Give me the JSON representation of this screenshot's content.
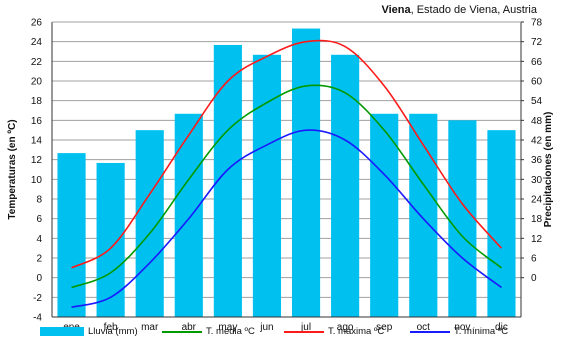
{
  "title": {
    "bold": "Viena",
    "rest": ", Estado de Viena, Austria"
  },
  "chart_data": {
    "type": "bar+line",
    "categories": [
      "ene",
      "feb",
      "mar",
      "abr",
      "may",
      "jun",
      "jul",
      "ago",
      "sep",
      "oct",
      "nov",
      "dic"
    ],
    "left_axis": {
      "label": "Temperaturas (en ºC)",
      "range": [
        -4,
        26
      ],
      "ticks": [
        -4,
        -2,
        0,
        2,
        4,
        6,
        8,
        10,
        12,
        14,
        16,
        18,
        20,
        22,
        24,
        26
      ]
    },
    "right_axis": {
      "label": "Precipitaciones (en mm)",
      "range": [
        -12,
        78
      ],
      "ticks": [
        0,
        6,
        12,
        18,
        24,
        30,
        36,
        42,
        48,
        54,
        60,
        66,
        72,
        78
      ]
    },
    "bars": {
      "name": "Lluvia (mm)",
      "axis": "right",
      "color": "#00c0f0",
      "values": [
        38,
        35,
        45,
        50,
        71,
        68,
        76,
        68,
        50,
        50,
        48,
        45
      ]
    },
    "series": [
      {
        "name": "T. media ºC",
        "color": "#009a00",
        "values": [
          -1.0,
          0.5,
          4.5,
          10.0,
          15.0,
          17.8,
          19.5,
          18.8,
          15.0,
          9.5,
          4.2,
          1.0
        ]
      },
      {
        "name": "T. máxima ºC",
        "color": "#ff1a1a",
        "values": [
          1.0,
          3.0,
          8.5,
          14.5,
          20.0,
          22.5,
          24.0,
          23.5,
          19.5,
          13.5,
          7.5,
          3.0
        ]
      },
      {
        "name": "T. mínima ºC",
        "color": "#1a1aff",
        "values": [
          -3.0,
          -2.0,
          1.5,
          6.0,
          11.0,
          13.5,
          15.0,
          14.0,
          10.5,
          6.0,
          2.0,
          -1.0
        ]
      }
    ],
    "grid": true,
    "legend_position": "bottom"
  }
}
